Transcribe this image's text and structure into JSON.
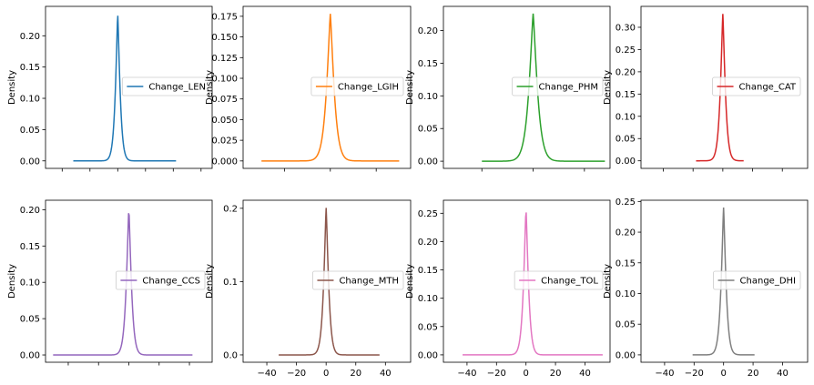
{
  "chart_data": [
    {
      "type": "line",
      "series": [
        {
          "name": "Change_LEN",
          "color": "#1f77b4",
          "peak": 0.235,
          "x_extent": [
            -32,
            42
          ]
        }
      ],
      "ylabel": "Density",
      "yticks": [
        "0.00",
        "0.05",
        "0.10",
        "0.15",
        "0.20"
      ],
      "ylim": [
        -0.012,
        0.247
      ],
      "xlim": [
        -52,
        68
      ],
      "xticks": [
        "-40",
        "-20",
        "0",
        "20",
        "40",
        "60"
      ],
      "show_xticklabels": false,
      "legend": "center-right",
      "grid": false
    },
    {
      "type": "line",
      "series": [
        {
          "name": "Change_LGIH",
          "color": "#ff7f0e",
          "peak": 0.178,
          "x_extent": [
            -30,
            30
          ]
        }
      ],
      "ylabel": "Density",
      "yticks": [
        "0.000",
        "0.025",
        "0.050",
        "0.075",
        "0.100",
        "0.125",
        "0.150",
        "0.175"
      ],
      "ylim": [
        -0.009,
        0.187
      ],
      "xlim": [
        -38,
        35
      ],
      "xticks": [
        "-40",
        "-20",
        "0",
        "20",
        "40"
      ],
      "show_xticklabels": false,
      "legend": "center-right",
      "grid": false
    },
    {
      "type": "line",
      "series": [
        {
          "name": "Change_PHM",
          "color": "#2ca02c",
          "peak": 0.226,
          "x_extent": [
            -20,
            28
          ]
        }
      ],
      "ylabel": "Density",
      "yticks": [
        "0.00",
        "0.05",
        "0.10",
        "0.15",
        "0.20"
      ],
      "ylim": [
        -0.011,
        0.237
      ],
      "xlim": [
        -35,
        30
      ],
      "xticks": [
        "-40",
        "-20",
        "0",
        "20",
        "40"
      ],
      "show_xticklabels": false,
      "legend": "center-right",
      "grid": false
    },
    {
      "type": "line",
      "series": [
        {
          "name": "Change_CAT",
          "color": "#d62728",
          "peak": 0.33,
          "x_extent": [
            -18,
            14
          ]
        }
      ],
      "ylabel": "Density",
      "yticks": [
        "0.00",
        "0.05",
        "0.10",
        "0.15",
        "0.20",
        "0.25",
        "0.30"
      ],
      "ylim": [
        -0.017,
        0.347
      ],
      "xlim": [
        -55,
        57
      ],
      "xticks": [
        "-40",
        "-20",
        "0",
        "20",
        "40"
      ],
      "show_xticklabels": false,
      "legend": "center-right",
      "grid": false
    },
    {
      "type": "line",
      "series": [
        {
          "name": "Change_CCS",
          "color": "#9467bd",
          "peak": 0.203,
          "x_extent": [
            -50,
            42
          ]
        }
      ],
      "ylabel": "Density",
      "yticks": [
        "0.00",
        "0.05",
        "0.10",
        "0.15",
        "0.20"
      ],
      "ylim": [
        -0.01,
        0.213
      ],
      "xlim": [
        -55,
        55
      ],
      "xticks": [
        "-40",
        "-20",
        "0",
        "20",
        "40"
      ],
      "show_xticklabels": false,
      "legend": "center-right",
      "grid": false
    },
    {
      "type": "line",
      "series": [
        {
          "name": "Change_MTH",
          "color": "#8c564b",
          "peak": 0.201,
          "x_extent": [
            -32,
            36
          ]
        }
      ],
      "ylabel": "Density",
      "yticks": [
        "0.0",
        "0.1",
        "0.2"
      ],
      "ylim": [
        -0.01,
        0.211
      ],
      "xlim": [
        -56,
        57
      ],
      "xticks": [
        "-40",
        "-20",
        "0",
        "20",
        "40"
      ],
      "show_xticklabels": true,
      "legend": "center-right",
      "grid": false
    },
    {
      "type": "line",
      "series": [
        {
          "name": "Change_TOL",
          "color": "#e377c2",
          "peak": 0.26,
          "x_extent": [
            -43,
            52
          ]
        }
      ],
      "ylabel": "Density",
      "yticks": [
        "0.00",
        "0.05",
        "0.10",
        "0.15",
        "0.20",
        "0.25"
      ],
      "ylim": [
        -0.013,
        0.273
      ],
      "xlim": [
        -56,
        57
      ],
      "xticks": [
        "-40",
        "-20",
        "0",
        "20",
        "40"
      ],
      "show_xticklabels": true,
      "legend": "center-right",
      "grid": false
    },
    {
      "type": "line",
      "series": [
        {
          "name": "Change_DHI",
          "color": "#7f7f7f",
          "peak": 0.24,
          "x_extent": [
            -21,
            21
          ]
        }
      ],
      "ylabel": "Density",
      "yticks": [
        "0.00",
        "0.05",
        "0.10",
        "0.15",
        "0.20",
        "0.25"
      ],
      "ylim": [
        -0.012,
        0.252
      ],
      "xlim": [
        -56,
        57
      ],
      "xticks": [
        "-40",
        "-20",
        "0",
        "20",
        "40"
      ],
      "show_xticklabels": true,
      "legend": "center-right",
      "grid": false
    }
  ]
}
